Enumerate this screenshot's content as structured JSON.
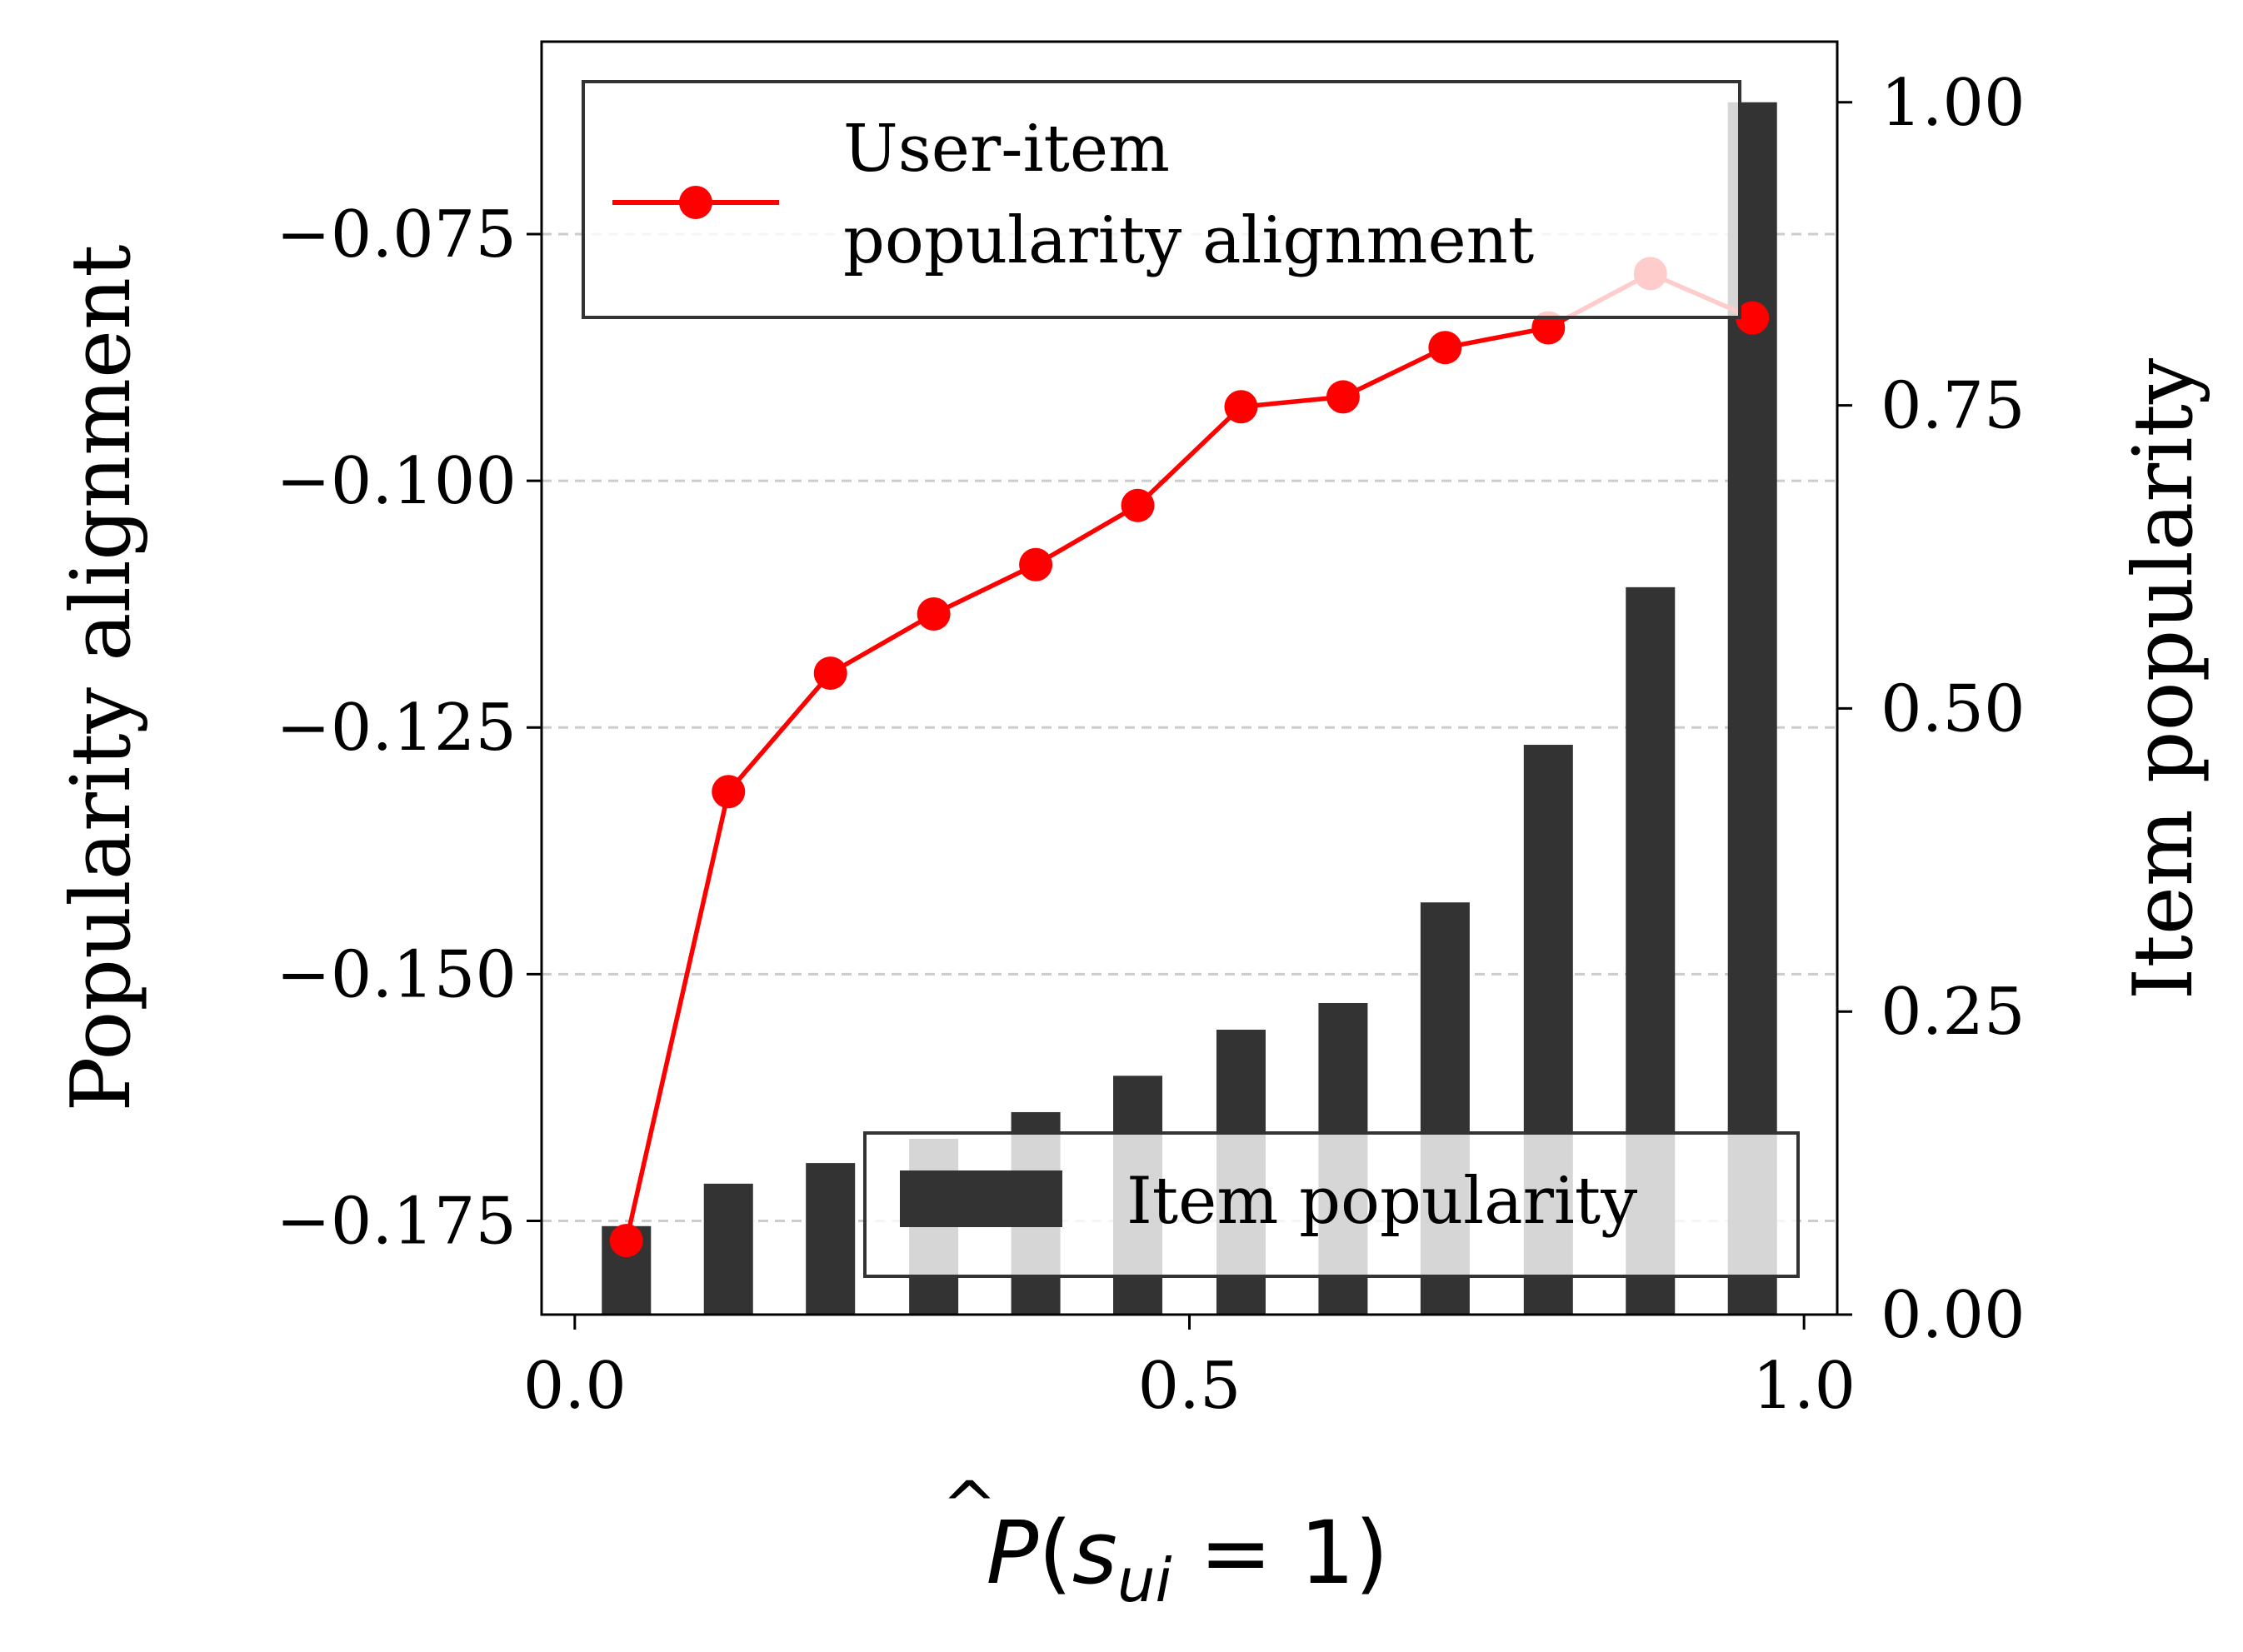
{
  "chart_data": {
    "type": "bar+line",
    "x": [
      0.042,
      0.125,
      0.208,
      0.292,
      0.375,
      0.458,
      0.542,
      0.625,
      0.708,
      0.792,
      0.875,
      0.958
    ],
    "series": [
      {
        "name": "User-item popularity alignment",
        "legend_lines": [
          "User-item",
          "popularity alignment"
        ],
        "type": "line",
        "axis": "left",
        "color": "#ff0000",
        "values": [
          -0.177,
          -0.1315,
          -0.1195,
          -0.1135,
          -0.1085,
          -0.1025,
          -0.0925,
          -0.0915,
          -0.0865,
          -0.0845,
          -0.079,
          -0.0835
        ]
      },
      {
        "name": "Item popularity",
        "type": "bar",
        "axis": "right",
        "color": "#333333",
        "values": [
          0.073,
          0.108,
          0.125,
          0.145,
          0.167,
          0.197,
          0.235,
          0.257,
          0.34,
          0.47,
          0.6,
          1.0
        ]
      }
    ],
    "xlabel": "P̂(s_ui = 1)",
    "xlabel_parts": {
      "main": "P",
      "hat": "^",
      "open": "(",
      "var": "s",
      "sub": "ui",
      "rest": " = 1)"
    },
    "ylabel_left": "Popularity alignment",
    "ylabel_right": "Item popularity",
    "xlim": [
      -0.027,
      1.027
    ],
    "ylim_left": [
      -0.1845,
      -0.0555
    ],
    "ylim_right": [
      0.0,
      1.05
    ],
    "xticks": [
      0.0,
      0.5,
      1.0
    ],
    "xtick_labels": [
      "0.0",
      "0.5",
      "1.0"
    ],
    "yticks_left": [
      -0.175,
      -0.15,
      -0.125,
      -0.1,
      -0.075
    ],
    "ytick_labels_left": [
      "−0.175",
      "−0.150",
      "−0.125",
      "−0.100",
      "−0.075"
    ],
    "yticks_right": [
      0.0,
      0.25,
      0.5,
      0.75,
      1.0
    ],
    "ytick_labels_right": [
      "0.00",
      "0.25",
      "0.50",
      "0.75",
      "1.00"
    ],
    "grid": "horizontal dashed (left axis)",
    "legend_line_position": "upper-left",
    "legend_bar_position": "lower-right"
  }
}
